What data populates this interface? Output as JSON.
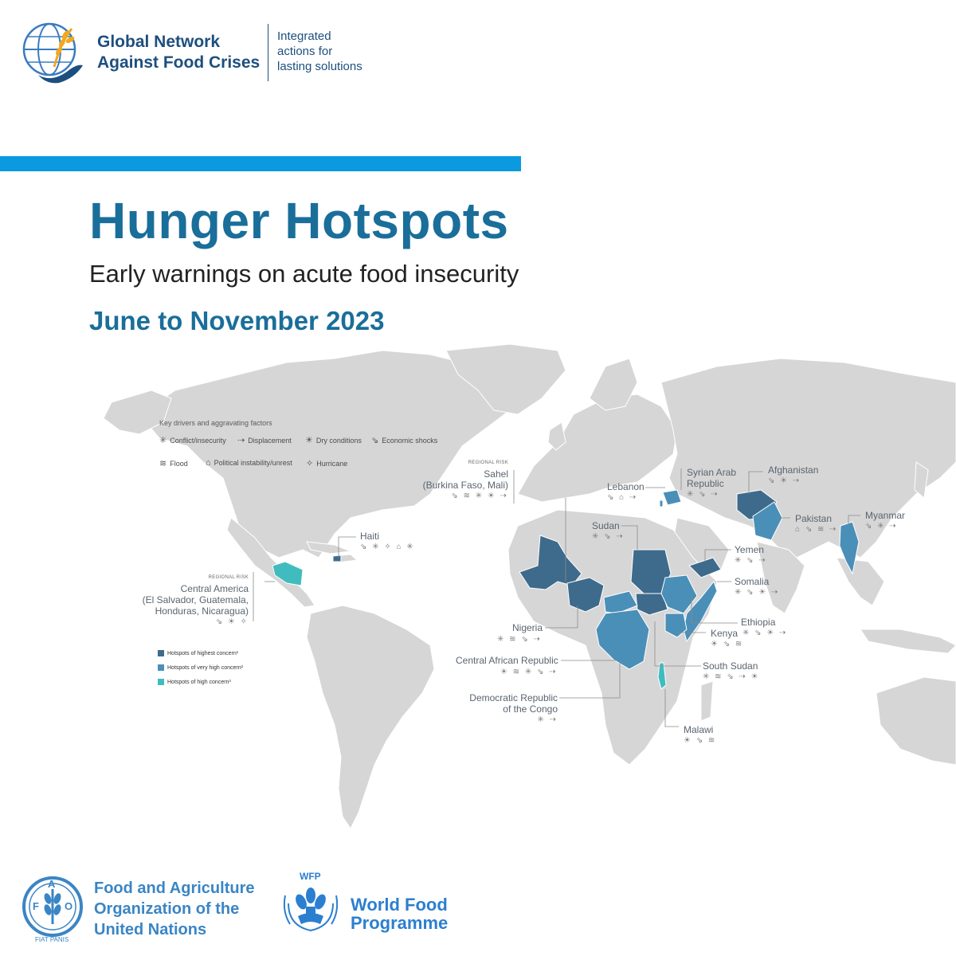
{
  "header": {
    "org_name_line1": "Global Network",
    "org_name_line2": "Against Food Crises",
    "tagline_line1": "Integrated",
    "tagline_line2": "actions for",
    "tagline_line3": "lasting solutions"
  },
  "title": "Hunger Hotspots",
  "subtitle": "Early warnings on acute food insecurity",
  "period": "June to November 2023",
  "colors": {
    "highest": "#3e6b8c",
    "very_high": "#4a8fb8",
    "high": "#40bcbf",
    "land": "#d6d6d6",
    "title_blue": "#1a6e9a",
    "bar_blue": "#0b9ae0"
  },
  "drivers_legend": {
    "title": "Key drivers and aggravating factors",
    "items": [
      {
        "icon": "conflict-icon",
        "glyph": "✳",
        "label": "Conflict/insecurity"
      },
      {
        "icon": "displacement-icon",
        "glyph": "⇢",
        "label": "Displacement"
      },
      {
        "icon": "dry-conditions-icon",
        "glyph": "☀",
        "label": "Dry conditions"
      },
      {
        "icon": "economic-shocks-icon",
        "glyph": "⇘",
        "label": "Economic shocks"
      },
      {
        "icon": "flood-icon",
        "glyph": "≋",
        "label": "Flood"
      },
      {
        "icon": "political-instability-icon",
        "glyph": "⌂",
        "label": "Political instability/unrest"
      },
      {
        "icon": "hurricane-icon",
        "glyph": "✧",
        "label": "Hurricane"
      }
    ]
  },
  "concern_legend": [
    {
      "level": "highest",
      "label": "Hotspots of highest concern¹"
    },
    {
      "level": "very_high",
      "label": "Hotspots of very high concern²"
    },
    {
      "level": "high",
      "label": "Hotspots of high concern³"
    }
  ],
  "hotspots": {
    "sahel": {
      "regional_label": "REGIONAL RISK",
      "name_line1": "Sahel",
      "name_line2": "(Burkina Faso, Mali)",
      "icons": "⇘ ≋ ✳ ☀ ⇢",
      "level": "highest"
    },
    "central_america": {
      "regional_label": "REGIONAL RISK",
      "name_line1": "Central America",
      "name_line2": "(El Salvador, Guatemala,",
      "name_line3": "Honduras, Nicaragua)",
      "icons": "⇘ ☀ ✧",
      "level": "high"
    },
    "haiti": {
      "name": "Haiti",
      "icons": "⇘ ✳ ✧ ⌂ ✳",
      "level": "highest"
    },
    "lebanon": {
      "name": "Lebanon",
      "icons": "⇘ ⌂ ⇢",
      "level": "very_high"
    },
    "syria": {
      "name_line1": "Syrian Arab",
      "name_line2": "Republic",
      "icons": "✳ ⇘ ⇢",
      "level": "very_high"
    },
    "afghanistan": {
      "name": "Afghanistan",
      "icons": "⇘ ☀ ⇢",
      "level": "highest"
    },
    "pakistan": {
      "name": "Pakistan",
      "icons": "⌂ ⇘ ≋ ⇢",
      "level": "very_high"
    },
    "myanmar": {
      "name": "Myanmar",
      "icons": "⇘ ✳ ⇢",
      "level": "very_high"
    },
    "sudan": {
      "name": "Sudan",
      "icons": "✳ ⇘ ⇢",
      "level": "highest"
    },
    "yemen": {
      "name": "Yemen",
      "icons": "✳ ⇘ ⇢",
      "level": "highest"
    },
    "somalia": {
      "name": "Somalia",
      "icons": "✳ ⇘ ☀ ⇢",
      "level": "very_high"
    },
    "ethiopia": {
      "name": "Ethiopia",
      "icons": "✳ ⇘ ☀ ⇢",
      "level": "very_high"
    },
    "kenya": {
      "name": "Kenya",
      "icons": "☀ ⇘ ≋",
      "level": "very_high"
    },
    "nigeria": {
      "name": "Nigeria",
      "icons": "✳ ≋ ⇘ ⇢",
      "level": "highest"
    },
    "car": {
      "name": "Central African Republic",
      "icons": "☀ ≋ ✳ ⇘ ⇢",
      "level": "very_high"
    },
    "south_sudan": {
      "name": "South Sudan",
      "icons": "✳ ≋ ⇘ ⇢ ☀",
      "level": "highest"
    },
    "drc": {
      "name_line1": "Democratic Republic",
      "name_line2": "of the Congo",
      "icons": "✳ ⇢",
      "level": "very_high"
    },
    "malawi": {
      "name": "Malawi",
      "icons": "☀ ⇘ ≋",
      "level": "high"
    }
  },
  "footer": {
    "fao_line1": "Food and Agriculture",
    "fao_line2": "Organization of the",
    "fao_line3": "United Nations",
    "fao_emblem_text": "FAO",
    "fao_motto": "FIAT PANIS",
    "wfp_small": "WFP",
    "wfp_line1": "World Food",
    "wfp_line2": "Programme"
  }
}
